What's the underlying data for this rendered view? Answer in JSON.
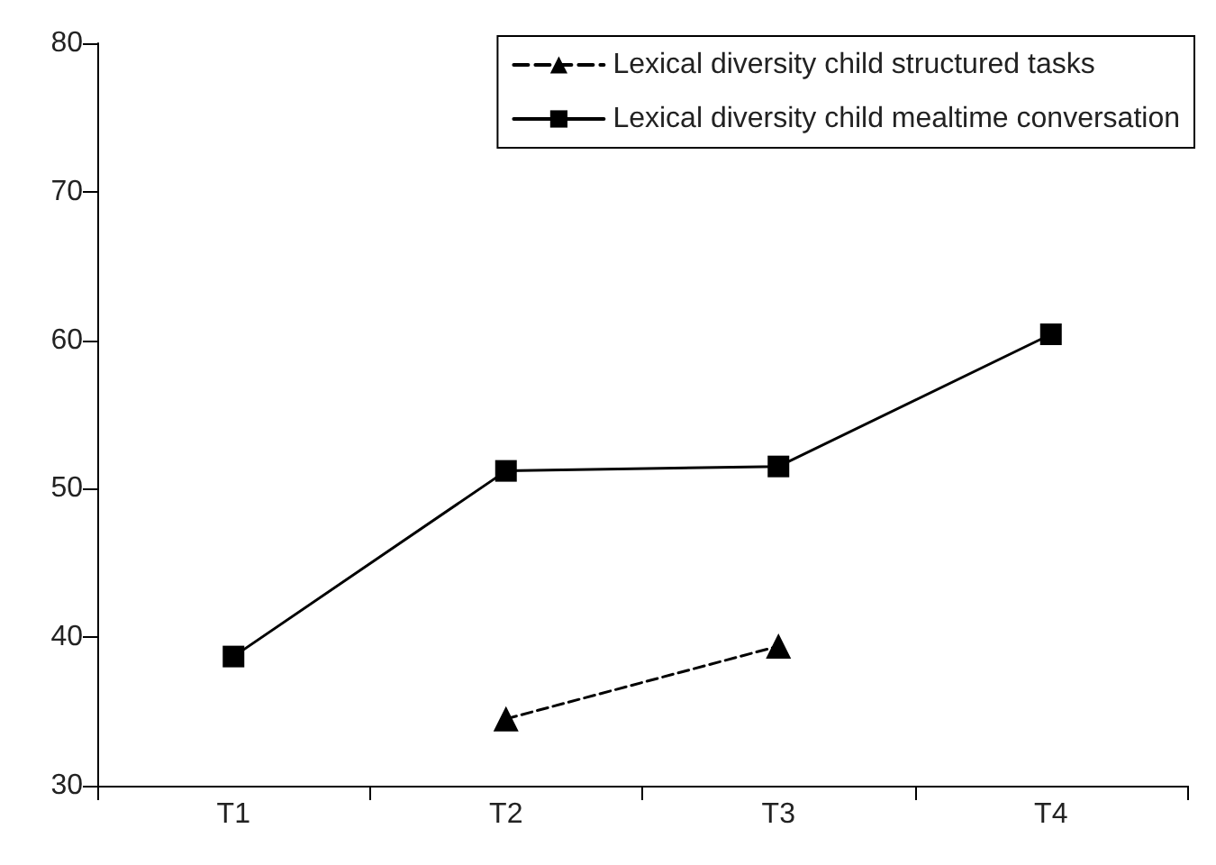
{
  "chart_data": {
    "type": "line",
    "categories": [
      "T1",
      "T2",
      "T3",
      "T4"
    ],
    "series": [
      {
        "name": "Lexical diversity child structured tasks",
        "color": "#000000",
        "values": [
          null,
          34.5,
          39.4,
          null
        ],
        "marker": "triangle",
        "line_style": "dashed"
      },
      {
        "name": "Lexical diversity child mealtime conversation",
        "color": "#000000",
        "values": [
          38.7,
          51.2,
          51.5,
          60.4
        ],
        "marker": "square",
        "line_style": "solid"
      }
    ],
    "ylim": [
      30,
      80
    ],
    "yticks": [
      30,
      40,
      50,
      60,
      70,
      80
    ],
    "grid": false,
    "legend": "top right"
  }
}
